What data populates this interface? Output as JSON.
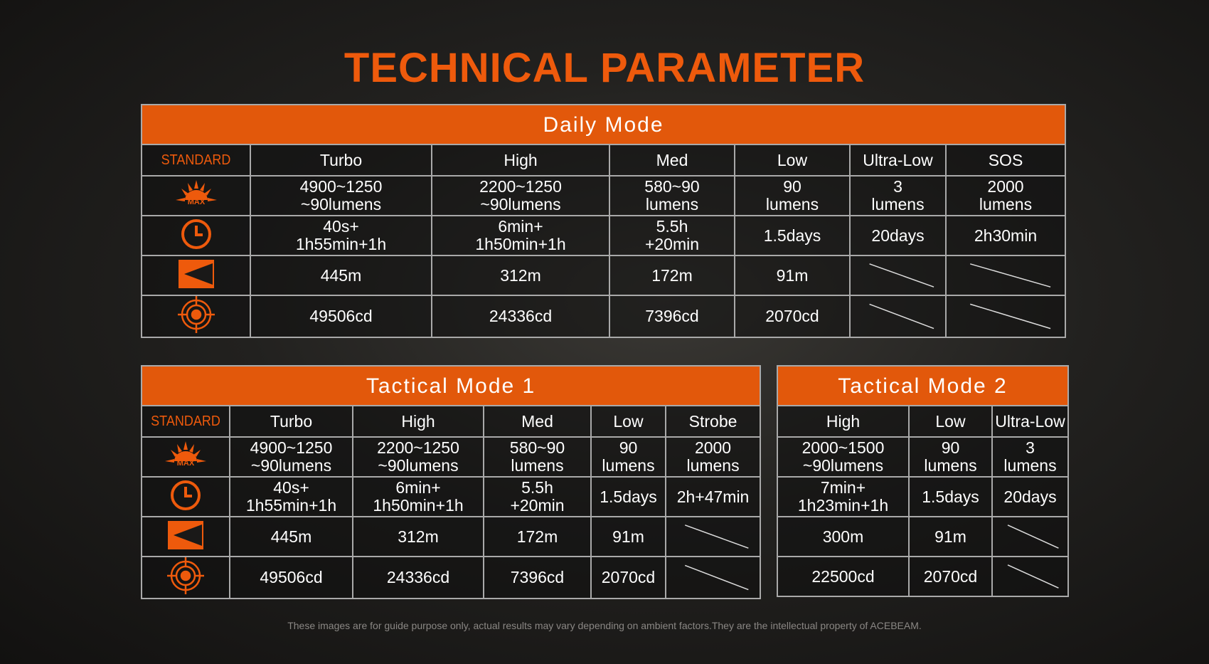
{
  "title": "TECHNICAL PARAMETER",
  "icon_max_label": "MAX",
  "tables": [
    {
      "title": "Daily Mode",
      "standard_label": "STANDARD",
      "columns": [
        "Turbo",
        "High",
        "Med",
        "Low",
        "Ultra-Low",
        "SOS"
      ],
      "rows": [
        [
          "4900~1250\n~90lumens",
          "2200~1250\n~90lumens",
          "580~90\nlumens",
          "90\nlumens",
          "3\nlumens",
          "2000\nlumens"
        ],
        [
          "40s+\n1h55min+1h",
          "6min+\n1h50min+1h",
          "5.5h\n+20min",
          "1.5days",
          "20days",
          "2h30min"
        ],
        [
          "445m",
          "312m",
          "172m",
          "91m",
          null,
          null
        ],
        [
          "49506cd",
          "24336cd",
          "7396cd",
          "2070cd",
          null,
          null
        ]
      ]
    },
    {
      "title": "Tactical Mode 1",
      "standard_label": "STANDARD",
      "columns": [
        "Turbo",
        "High",
        "Med",
        "Low",
        "Strobe"
      ],
      "rows": [
        [
          "4900~1250\n~90lumens",
          "2200~1250\n~90lumens",
          "580~90\nlumens",
          "90\nlumens",
          "2000\nlumens"
        ],
        [
          "40s+\n1h55min+1h",
          "6min+\n1h50min+1h",
          "5.5h\n+20min",
          "1.5days",
          "2h+47min"
        ],
        [
          "445m",
          "312m",
          "172m",
          "91m",
          null
        ],
        [
          "49506cd",
          "24336cd",
          "7396cd",
          "2070cd",
          null
        ]
      ]
    },
    {
      "title": "Tactical Mode 2",
      "columns": [
        "High",
        "Low",
        "Ultra-Low"
      ],
      "rows": [
        [
          "2000~1500\n~90lumens",
          "90\nlumens",
          "3\nlumens"
        ],
        [
          "7min+\n1h23min+1h",
          "1.5days",
          "20days"
        ],
        [
          "300m",
          "91m",
          null
        ],
        [
          "22500cd",
          "2070cd",
          null
        ]
      ]
    }
  ],
  "footer": "These images are for guide purpose only, actual results may vary depending on ambient factors.They are the intellectual property of ACEBEAM."
}
